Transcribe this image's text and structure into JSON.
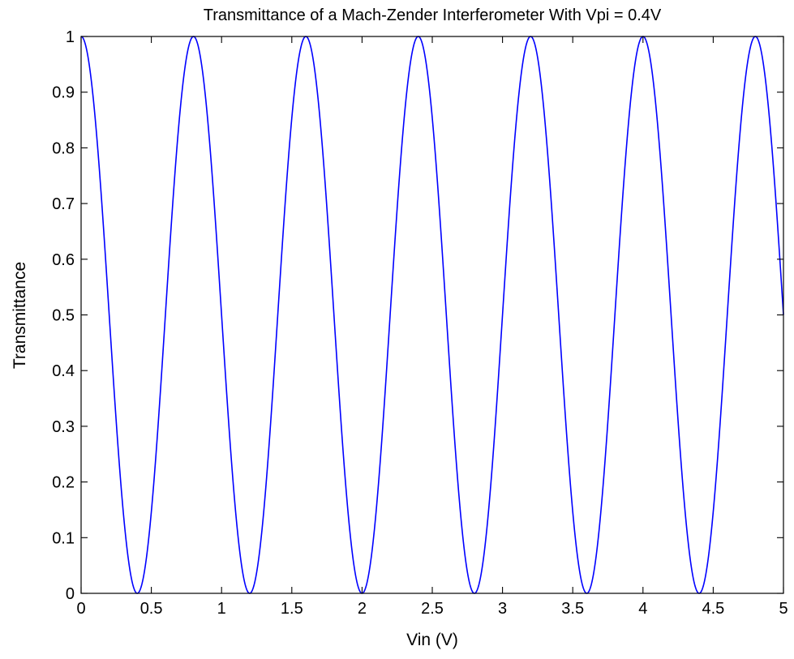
{
  "chart_data": {
    "type": "line",
    "title": "Transmittance of a Mach-Zender Interferometer With Vpi = 0.4V",
    "xlabel": "Vin (V)",
    "ylabel": "Transmittance",
    "xlim": [
      0,
      5
    ],
    "ylim": [
      0,
      1
    ],
    "x_ticks": [
      0,
      0.5,
      1,
      1.5,
      2,
      2.5,
      3,
      3.5,
      4,
      4.5,
      5
    ],
    "x_tick_labels": [
      "0",
      "0.5",
      "1",
      "1.5",
      "2",
      "2.5",
      "3",
      "3.5",
      "4",
      "4.5",
      "5"
    ],
    "y_ticks": [
      0,
      0.1,
      0.2,
      0.3,
      0.4,
      0.5,
      0.6,
      0.7,
      0.8,
      0.9,
      1
    ],
    "y_tick_labels": [
      "0",
      "0.1",
      "0.2",
      "0.3",
      "0.4",
      "0.5",
      "0.6",
      "0.7",
      "0.8",
      "0.9",
      "1"
    ],
    "grid": false,
    "series": [
      {
        "color": "#0000ff",
        "x": [
          0,
          0.1,
          0.2,
          0.3,
          0.4,
          0.5,
          0.6,
          0.7,
          0.8,
          0.9,
          1.0,
          1.1,
          1.2,
          1.3,
          1.4,
          1.5,
          1.6,
          1.7,
          1.8,
          1.9,
          2.0,
          2.1,
          2.2,
          2.3,
          2.4,
          2.5,
          2.6,
          2.7,
          2.8,
          2.9,
          3.0,
          3.1,
          3.2,
          3.3,
          3.4,
          3.5,
          3.6,
          3.7,
          3.8,
          3.9,
          4.0,
          4.1,
          4.2,
          4.3,
          4.4,
          4.5,
          4.6,
          4.7,
          4.8,
          4.9,
          5.0
        ],
        "y": [
          1,
          0.854,
          0.5,
          0.146,
          0,
          0.146,
          0.5,
          0.854,
          1,
          0.854,
          0.5,
          0.146,
          0,
          0.146,
          0.5,
          0.854,
          1,
          0.854,
          0.5,
          0.146,
          0,
          0.146,
          0.5,
          0.854,
          1,
          0.854,
          0.5,
          0.146,
          0,
          0.146,
          0.5,
          0.854,
          1,
          0.854,
          0.5,
          0.146,
          0,
          0.146,
          0.5,
          0.854,
          1,
          0.854,
          0.5,
          0.146,
          0,
          0.146,
          0.5,
          0.854,
          1,
          0.854,
          0.5
        ]
      }
    ]
  }
}
